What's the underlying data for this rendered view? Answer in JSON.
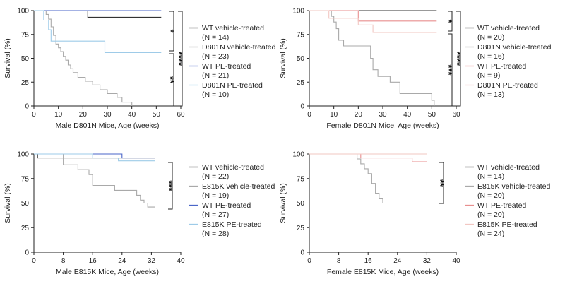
{
  "colors": {
    "wt_vehicle": "#333333",
    "mut_vehicle": "#a9a9a9",
    "wt_pe_blue": "#4a66c8",
    "mut_pe_lightblue": "#9ecbe8",
    "wt_pe_red": "#e88f8f",
    "mut_pe_pink": "#f2c7c2",
    "bracket": "#222222",
    "axis": "#222222"
  },
  "chart_data": [
    {
      "type": "line",
      "title": "",
      "xlabel": "Male D801N Mice, Age (weeks)",
      "ylabel": "Survival (%)",
      "xlim": [
        0,
        60
      ],
      "ylim": [
        0,
        100
      ],
      "xticks": [
        "0",
        "10",
        "20",
        "30",
        "40",
        "50",
        "60"
      ],
      "yticks": [
        "0",
        "25",
        "50",
        "75",
        "100"
      ],
      "series": [
        {
          "name": "WT vehicle-treated",
          "n": "(N = 14)",
          "color_key": "wt_vehicle",
          "x": [
            0,
            22,
            22,
            52
          ],
          "y": [
            100,
            100,
            93,
            93
          ]
        },
        {
          "name": "D801N vehicle-treated",
          "n": "(N = 23)",
          "color_key": "mut_vehicle",
          "x": [
            0,
            5,
            5,
            6,
            6,
            7,
            7,
            8,
            8,
            9,
            9,
            10,
            10,
            11,
            11,
            12,
            12,
            13,
            13,
            14,
            14,
            15,
            15,
            16,
            16,
            18,
            18,
            21,
            21,
            24,
            24,
            27,
            27,
            30,
            30,
            34,
            34,
            36,
            36,
            40,
            40
          ],
          "y": [
            100,
            100,
            96,
            96,
            91,
            91,
            83,
            83,
            74,
            74,
            65,
            65,
            61,
            61,
            57,
            57,
            52,
            52,
            48,
            48,
            43,
            43,
            39,
            39,
            35,
            35,
            30,
            30,
            26,
            26,
            22,
            22,
            17,
            17,
            13,
            13,
            9,
            9,
            4,
            4,
            0
          ]
        },
        {
          "name": "WT PE-treated",
          "n": "(N = 21)",
          "color_key": "wt_pe_blue",
          "x": [
            0,
            52
          ],
          "y": [
            100,
            100
          ]
        },
        {
          "name": "D801N PE-treated",
          "n": "(N = 10)",
          "color_key": "mut_pe_lightblue",
          "x": [
            0,
            4,
            4,
            6,
            6,
            7,
            7,
            29,
            29,
            52
          ],
          "y": [
            100,
            100,
            90,
            90,
            80,
            80,
            68,
            68,
            56,
            56
          ]
        }
      ],
      "significance": [
        {
          "label": "*",
          "compares": [
            "WT vehicle-treated",
            "D801N vehicle-treated"
          ]
        },
        {
          "label": "****",
          "compares": [
            "WT vehicle-treated",
            "D801N vehicle-treated"
          ]
        },
        {
          "label": "**",
          "compares": [
            "D801N vehicle-treated",
            "D801N PE-treated"
          ]
        }
      ]
    },
    {
      "type": "line",
      "title": "",
      "xlabel": "Female D801N Mice, Age (weeks)",
      "ylabel": "Survival (%)",
      "xlim": [
        0,
        60
      ],
      "ylim": [
        0,
        100
      ],
      "xticks": [
        "0",
        "10",
        "20",
        "30",
        "40",
        "50",
        "60"
      ],
      "yticks": [
        "0",
        "25",
        "50",
        "75",
        "100"
      ],
      "series": [
        {
          "name": "WT vehicle-treated",
          "n": "(N = 20)",
          "color_key": "wt_vehicle",
          "x": [
            0,
            52
          ],
          "y": [
            100,
            100
          ]
        },
        {
          "name": "D801N vehicle-treated",
          "n": "(N = 16)",
          "color_key": "mut_vehicle",
          "x": [
            0,
            9,
            9,
            10,
            10,
            11,
            11,
            12,
            12,
            14,
            14,
            25,
            25,
            26,
            26,
            28,
            28,
            33,
            33,
            37,
            37,
            50,
            50,
            51,
            51
          ],
          "y": [
            100,
            100,
            94,
            94,
            88,
            88,
            81,
            81,
            69,
            69,
            63,
            63,
            50,
            50,
            38,
            38,
            31,
            31,
            25,
            25,
            13,
            13,
            6,
            6,
            0
          ]
        },
        {
          "name": "WT PE-treated",
          "n": "(N = 9)",
          "color_key": "wt_pe_red",
          "x": [
            0,
            20,
            20,
            52
          ],
          "y": [
            100,
            100,
            89,
            89
          ]
        },
        {
          "name": "D801N PE-treated",
          "n": "(N = 13)",
          "color_key": "mut_pe_pink",
          "x": [
            0,
            8,
            8,
            9,
            9,
            20,
            20,
            26,
            26,
            52
          ],
          "y": [
            100,
            100,
            92,
            92,
            92,
            92,
            85,
            85,
            77,
            77
          ]
        }
      ],
      "significance": [
        {
          "label": "*",
          "compares": [
            "WT vehicle-treated",
            "D801N vehicle-treated"
          ]
        },
        {
          "label": "****",
          "compares": [
            "WT vehicle-treated",
            "D801N vehicle-treated"
          ]
        },
        {
          "label": "***",
          "compares": [
            "D801N vehicle-treated",
            "D801N PE-treated"
          ]
        }
      ]
    },
    {
      "type": "line",
      "title": "",
      "xlabel": "Male E815K Mice, Age (weeks)",
      "ylabel": "Survival (%)",
      "xlim": [
        0,
        40
      ],
      "ylim": [
        0,
        100
      ],
      "xticks": [
        "0",
        "8",
        "16",
        "24",
        "32",
        "40"
      ],
      "yticks": [
        "0",
        "25",
        "50",
        "75",
        "100"
      ],
      "series": [
        {
          "name": "WT vehicle-treated",
          "n": "(N = 22)",
          "color_key": "wt_vehicle",
          "x": [
            0,
            1,
            1,
            33
          ],
          "y": [
            100,
            100,
            96,
            96
          ]
        },
        {
          "name": "E815K vehicle-treated",
          "n": "(N = 19)",
          "color_key": "mut_vehicle",
          "x": [
            0,
            8,
            8,
            12,
            12,
            15,
            15,
            16,
            16,
            22,
            22,
            23,
            23,
            28,
            28,
            29,
            29,
            30,
            30,
            31,
            31,
            33
          ],
          "y": [
            100,
            100,
            89,
            89,
            84,
            84,
            79,
            79,
            68,
            68,
            63,
            63,
            63,
            63,
            58,
            58,
            53,
            53,
            50,
            50,
            46,
            46
          ]
        },
        {
          "name": "WT PE-treated",
          "n": "(N = 27)",
          "color_key": "wt_pe_blue",
          "x": [
            0,
            24,
            24,
            33
          ],
          "y": [
            100,
            100,
            96,
            96
          ]
        },
        {
          "name": "E815K PE-treated",
          "n": "(N = 28)",
          "color_key": "mut_pe_lightblue",
          "x": [
            0,
            16,
            16,
            23,
            23,
            33
          ],
          "y": [
            100,
            100,
            96,
            96,
            93,
            93
          ]
        }
      ],
      "significance": [
        {
          "label": "***",
          "compares": [
            "E815K vehicle-treated",
            "E815K PE-treated"
          ]
        }
      ]
    },
    {
      "type": "line",
      "title": "",
      "xlabel": "Female E815K Mice, Age (weeks)",
      "ylabel": "Survival (%)",
      "xlim": [
        0,
        40
      ],
      "ylim": [
        0,
        100
      ],
      "xticks": [
        "0",
        "8",
        "16",
        "24",
        "32",
        "40"
      ],
      "yticks": [
        "0",
        "25",
        "50",
        "75",
        "100"
      ],
      "series": [
        {
          "name": "WT vehicle-treated",
          "n": "(N = 14)",
          "color_key": "wt_vehicle",
          "x": [
            0,
            32
          ],
          "y": [
            100,
            100
          ]
        },
        {
          "name": "E815K vehicle-treated",
          "n": "(N = 20)",
          "color_key": "mut_vehicle",
          "x": [
            0,
            13,
            13,
            14,
            14,
            15,
            15,
            16,
            16,
            17,
            17,
            18,
            18,
            19,
            19,
            20,
            20,
            23,
            23,
            32
          ],
          "y": [
            100,
            100,
            95,
            95,
            90,
            90,
            85,
            85,
            80,
            80,
            70,
            70,
            60,
            60,
            55,
            55,
            50,
            50,
            50,
            50
          ]
        },
        {
          "name": "WT PE-treated",
          "n": "(N = 20)",
          "color_key": "wt_pe_red",
          "x": [
            0,
            14,
            14,
            28,
            28,
            32
          ],
          "y": [
            100,
            100,
            96,
            96,
            92,
            92
          ]
        },
        {
          "name": "E815K PE-treated",
          "n": "(N = 24)",
          "color_key": "mut_pe_pink",
          "x": [
            0,
            32
          ],
          "y": [
            100,
            100
          ]
        }
      ],
      "significance": [
        {
          "label": "**",
          "compares": [
            "E815K vehicle-treated",
            "E815K PE-treated"
          ]
        }
      ]
    }
  ]
}
